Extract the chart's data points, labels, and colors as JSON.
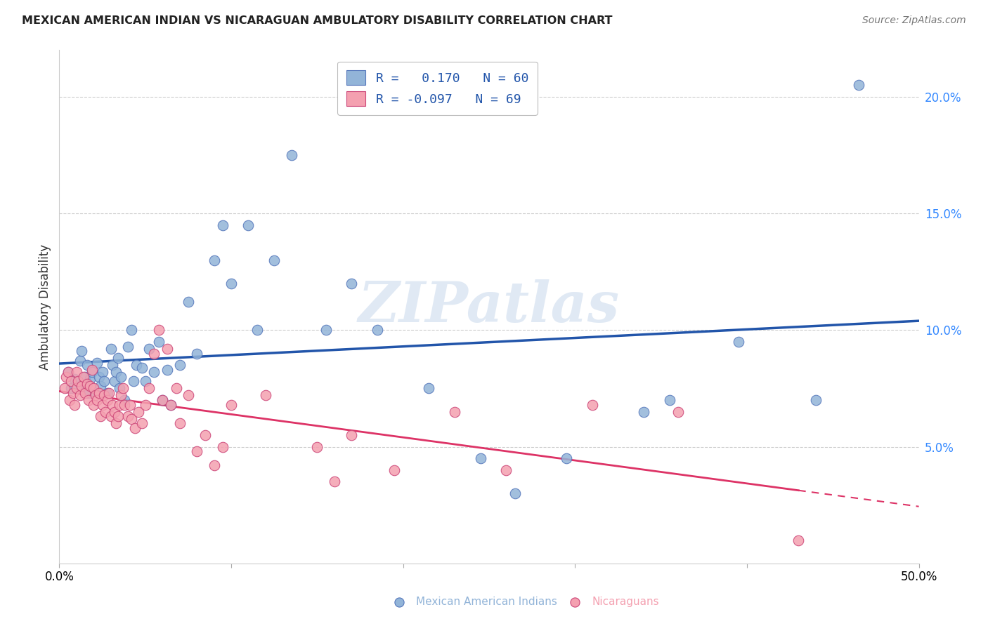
{
  "title": "MEXICAN AMERICAN INDIAN VS NICARAGUAN AMBULATORY DISABILITY CORRELATION CHART",
  "source": "Source: ZipAtlas.com",
  "ylabel": "Ambulatory Disability",
  "xlim": [
    0.0,
    0.5
  ],
  "ylim": [
    0.0,
    0.22
  ],
  "yticks": [
    0.05,
    0.1,
    0.15,
    0.2
  ],
  "ytick_labels": [
    "5.0%",
    "10.0%",
    "15.0%",
    "20.0%"
  ],
  "xticks": [
    0.0,
    0.1,
    0.2,
    0.3,
    0.4,
    0.5
  ],
  "xtick_labels": [
    "0.0%",
    "",
    "",
    "",
    "",
    "50.0%"
  ],
  "blue_r": 0.17,
  "blue_n": 60,
  "pink_r": -0.097,
  "pink_n": 69,
  "blue_color": "#92b4d8",
  "pink_color": "#f4a0b0",
  "blue_edge_color": "#5577bb",
  "pink_edge_color": "#cc4477",
  "blue_line_color": "#2255aa",
  "pink_line_color": "#dd3366",
  "watermark": "ZIPatlas",
  "background_color": "#ffffff",
  "grid_color": "#cccccc",
  "blue_x": [
    0.005,
    0.007,
    0.009,
    0.012,
    0.013,
    0.014,
    0.015,
    0.015,
    0.016,
    0.017,
    0.018,
    0.019,
    0.022,
    0.023,
    0.024,
    0.025,
    0.026,
    0.028,
    0.03,
    0.031,
    0.032,
    0.033,
    0.034,
    0.035,
    0.036,
    0.038,
    0.04,
    0.042,
    0.043,
    0.045,
    0.048,
    0.05,
    0.052,
    0.055,
    0.058,
    0.06,
    0.063,
    0.065,
    0.07,
    0.075,
    0.08,
    0.09,
    0.095,
    0.1,
    0.11,
    0.115,
    0.125,
    0.135,
    0.155,
    0.17,
    0.185,
    0.215,
    0.245,
    0.265,
    0.295,
    0.34,
    0.355,
    0.395,
    0.44,
    0.465
  ],
  "blue_y": [
    0.082,
    0.075,
    0.079,
    0.087,
    0.091,
    0.076,
    0.08,
    0.074,
    0.085,
    0.073,
    0.079,
    0.082,
    0.086,
    0.08,
    0.076,
    0.082,
    0.078,
    0.073,
    0.092,
    0.085,
    0.078,
    0.082,
    0.088,
    0.075,
    0.08,
    0.07,
    0.093,
    0.1,
    0.078,
    0.085,
    0.084,
    0.078,
    0.092,
    0.082,
    0.095,
    0.07,
    0.083,
    0.068,
    0.085,
    0.112,
    0.09,
    0.13,
    0.145,
    0.12,
    0.145,
    0.1,
    0.13,
    0.175,
    0.1,
    0.12,
    0.1,
    0.075,
    0.045,
    0.03,
    0.045,
    0.065,
    0.07,
    0.095,
    0.07,
    0.205
  ],
  "pink_x": [
    0.003,
    0.004,
    0.005,
    0.006,
    0.007,
    0.008,
    0.009,
    0.01,
    0.01,
    0.011,
    0.012,
    0.013,
    0.014,
    0.015,
    0.016,
    0.017,
    0.018,
    0.019,
    0.02,
    0.02,
    0.021,
    0.022,
    0.023,
    0.024,
    0.025,
    0.026,
    0.027,
    0.028,
    0.029,
    0.03,
    0.031,
    0.032,
    0.033,
    0.034,
    0.035,
    0.036,
    0.037,
    0.038,
    0.04,
    0.041,
    0.042,
    0.044,
    0.046,
    0.048,
    0.05,
    0.052,
    0.055,
    0.058,
    0.06,
    0.063,
    0.065,
    0.068,
    0.07,
    0.075,
    0.08,
    0.085,
    0.09,
    0.095,
    0.1,
    0.12,
    0.15,
    0.16,
    0.17,
    0.195,
    0.23,
    0.26,
    0.31,
    0.36,
    0.43
  ],
  "pink_y": [
    0.075,
    0.08,
    0.082,
    0.07,
    0.078,
    0.073,
    0.068,
    0.082,
    0.075,
    0.078,
    0.072,
    0.076,
    0.08,
    0.073,
    0.077,
    0.07,
    0.076,
    0.083,
    0.068,
    0.075,
    0.072,
    0.07,
    0.073,
    0.063,
    0.068,
    0.072,
    0.065,
    0.07,
    0.073,
    0.063,
    0.068,
    0.065,
    0.06,
    0.063,
    0.068,
    0.072,
    0.075,
    0.068,
    0.063,
    0.068,
    0.062,
    0.058,
    0.065,
    0.06,
    0.068,
    0.075,
    0.09,
    0.1,
    0.07,
    0.092,
    0.068,
    0.075,
    0.06,
    0.072,
    0.048,
    0.055,
    0.042,
    0.05,
    0.068,
    0.072,
    0.05,
    0.035,
    0.055,
    0.04,
    0.065,
    0.04,
    0.068,
    0.065,
    0.01
  ]
}
